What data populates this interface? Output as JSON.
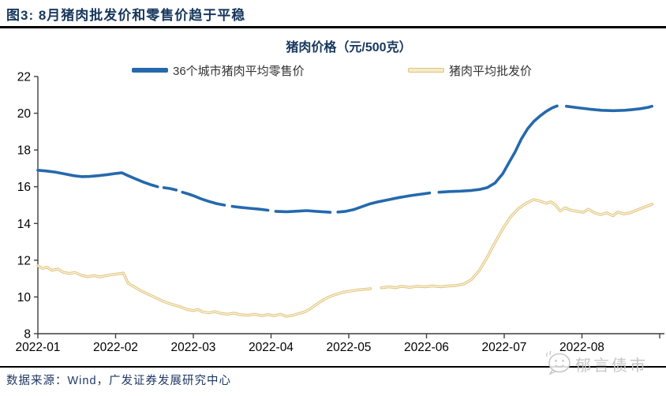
{
  "header": {
    "title": "图3:  8月猪肉批发价和零售价趋于平稳"
  },
  "chart": {
    "title": "猪肉价格（元/500克）"
  },
  "legend": [
    {
      "label": "36个城市猪肉平均零售价",
      "fill": "#2569AC",
      "border": "#2569AC"
    },
    {
      "label": "猪肉平均批发价",
      "fill": "#F5EBC9",
      "border": "#DFC47E"
    }
  ],
  "source": {
    "text": "数据来源：Wind，广发证券发展研究中心"
  },
  "watermark": {
    "text": "郁言债市"
  },
  "chart_data": {
    "type": "line",
    "title": "猪肉价格（元/500克）",
    "xlabel": "",
    "ylabel": "",
    "x_unit": "months since 2022-01-01",
    "xlim": [
      0,
      8.08
    ],
    "ylim": [
      8,
      22
    ],
    "grid": false,
    "legend_position": "top",
    "yticks": [
      8,
      10,
      12,
      14,
      16,
      18,
      20,
      22
    ],
    "xticks": [
      {
        "pos": 0,
        "label": "2022-01"
      },
      {
        "pos": 1,
        "label": "2022-02"
      },
      {
        "pos": 2,
        "label": "2022-03"
      },
      {
        "pos": 3,
        "label": "2022-04"
      },
      {
        "pos": 4,
        "label": "2022-05"
      },
      {
        "pos": 5,
        "label": "2022-06"
      },
      {
        "pos": 6,
        "label": "2022-07"
      },
      {
        "pos": 7,
        "label": "2022-08"
      },
      {
        "pos": 8,
        "label": ""
      }
    ],
    "series": [
      {
        "name": "36个城市猪肉平均零售价",
        "data_name": "retail-price-line",
        "color": "#2569AC",
        "width": 3.6,
        "segments": [
          [
            [
              0,
              16.9
            ],
            [
              0.1,
              16.86
            ],
            [
              0.22,
              16.8
            ],
            [
              0.34,
              16.7
            ],
            [
              0.46,
              16.6
            ],
            [
              0.56,
              16.55
            ],
            [
              0.66,
              16.56
            ],
            [
              0.78,
              16.6
            ],
            [
              0.9,
              16.66
            ],
            [
              1.0,
              16.72
            ],
            [
              1.08,
              16.76
            ],
            [
              1.16,
              16.6
            ],
            [
              1.26,
              16.42
            ],
            [
              1.36,
              16.25
            ],
            [
              1.46,
              16.1
            ],
            [
              1.54,
              16.0
            ]
          ],
          [
            [
              1.62,
              15.95
            ],
            [
              1.7,
              15.9
            ],
            [
              1.78,
              15.82
            ]
          ],
          [
            [
              1.86,
              15.7
            ],
            [
              1.94,
              15.6
            ],
            [
              2.02,
              15.48
            ],
            [
              2.1,
              15.34
            ],
            [
              2.2,
              15.2
            ],
            [
              2.3,
              15.08
            ],
            [
              2.4,
              15.0
            ]
          ],
          [
            [
              2.5,
              14.93
            ],
            [
              2.6,
              14.88
            ],
            [
              2.72,
              14.83
            ],
            [
              2.84,
              14.78
            ],
            [
              2.96,
              14.72
            ]
          ],
          [
            [
              3.06,
              14.66
            ],
            [
              3.2,
              14.64
            ],
            [
              3.34,
              14.67
            ],
            [
              3.46,
              14.7
            ],
            [
              3.58,
              14.66
            ],
            [
              3.68,
              14.63
            ],
            [
              3.76,
              14.61
            ]
          ],
          [
            [
              3.86,
              14.62
            ],
            [
              3.96,
              14.66
            ],
            [
              4.06,
              14.75
            ],
            [
              4.16,
              14.9
            ],
            [
              4.26,
              15.05
            ],
            [
              4.38,
              15.18
            ],
            [
              4.52,
              15.3
            ],
            [
              4.66,
              15.42
            ],
            [
              4.8,
              15.52
            ],
            [
              4.94,
              15.6
            ],
            [
              5.04,
              15.66
            ]
          ],
          [
            [
              5.16,
              15.7
            ],
            [
              5.3,
              15.74
            ],
            [
              5.44,
              15.76
            ],
            [
              5.58,
              15.8
            ],
            [
              5.68,
              15.85
            ],
            [
              5.78,
              15.95
            ],
            [
              5.88,
              16.2
            ],
            [
              5.98,
              16.7
            ],
            [
              6.06,
              17.3
            ],
            [
              6.14,
              17.9
            ],
            [
              6.22,
              18.6
            ],
            [
              6.3,
              19.15
            ],
            [
              6.38,
              19.55
            ],
            [
              6.46,
              19.85
            ],
            [
              6.54,
              20.1
            ],
            [
              6.62,
              20.3
            ],
            [
              6.68,
              20.4
            ]
          ],
          [
            [
              6.8,
              20.38
            ],
            [
              6.95,
              20.3
            ],
            [
              7.1,
              20.22
            ],
            [
              7.25,
              20.16
            ],
            [
              7.4,
              20.14
            ],
            [
              7.55,
              20.16
            ],
            [
              7.65,
              20.2
            ],
            [
              7.75,
              20.25
            ],
            [
              7.85,
              20.32
            ],
            [
              7.9,
              20.38
            ]
          ]
        ]
      },
      {
        "name": "猪肉平均批发价",
        "data_name": "wholesale-price-line",
        "color": "#DFC47E",
        "inner_color": "#FAF3DC",
        "width": 3.4,
        "inner_width": 1.4,
        "segments": [
          [
            [
              0,
              11.7
            ],
            [
              0.06,
              11.55
            ],
            [
              0.12,
              11.62
            ],
            [
              0.18,
              11.45
            ],
            [
              0.26,
              11.52
            ],
            [
              0.32,
              11.35
            ],
            [
              0.4,
              11.28
            ],
            [
              0.48,
              11.33
            ],
            [
              0.56,
              11.18
            ],
            [
              0.64,
              11.1
            ],
            [
              0.72,
              11.16
            ],
            [
              0.8,
              11.1
            ],
            [
              0.88,
              11.16
            ],
            [
              0.96,
              11.22
            ],
            [
              1.04,
              11.26
            ],
            [
              1.1,
              11.3
            ],
            [
              1.16,
              10.75
            ],
            [
              1.24,
              10.55
            ],
            [
              1.32,
              10.35
            ],
            [
              1.42,
              10.15
            ],
            [
              1.52,
              9.95
            ],
            [
              1.62,
              9.75
            ],
            [
              1.72,
              9.6
            ],
            [
              1.82,
              9.48
            ],
            [
              1.92,
              9.32
            ],
            [
              2.0,
              9.26
            ],
            [
              2.06,
              9.32
            ],
            [
              2.12,
              9.18
            ],
            [
              2.2,
              9.14
            ],
            [
              2.28,
              9.2
            ],
            [
              2.36,
              9.1
            ],
            [
              2.44,
              9.06
            ],
            [
              2.52,
              9.12
            ],
            [
              2.6,
              9.04
            ],
            [
              2.7,
              9.0
            ],
            [
              2.78,
              9.06
            ],
            [
              2.88,
              8.98
            ],
            [
              2.96,
              9.04
            ],
            [
              3.04,
              8.98
            ],
            [
              3.12,
              9.06
            ],
            [
              3.2,
              8.94
            ],
            [
              3.28,
              9.0
            ],
            [
              3.36,
              9.1
            ],
            [
              3.44,
              9.2
            ],
            [
              3.52,
              9.4
            ],
            [
              3.62,
              9.7
            ],
            [
              3.72,
              9.95
            ],
            [
              3.82,
              10.12
            ],
            [
              3.92,
              10.25
            ],
            [
              4.02,
              10.32
            ],
            [
              4.12,
              10.38
            ],
            [
              4.22,
              10.42
            ],
            [
              4.28,
              10.45
            ]
          ],
          [
            [
              4.42,
              10.5
            ],
            [
              4.52,
              10.55
            ],
            [
              4.6,
              10.5
            ],
            [
              4.68,
              10.58
            ],
            [
              4.78,
              10.52
            ],
            [
              4.88,
              10.58
            ],
            [
              4.98,
              10.55
            ],
            [
              5.08,
              10.6
            ],
            [
              5.18,
              10.55
            ],
            [
              5.28,
              10.6
            ],
            [
              5.38,
              10.62
            ],
            [
              5.48,
              10.7
            ],
            [
              5.58,
              10.95
            ],
            [
              5.68,
              11.45
            ],
            [
              5.78,
              12.15
            ],
            [
              5.88,
              12.95
            ],
            [
              5.98,
              13.7
            ],
            [
              6.08,
              14.35
            ],
            [
              6.18,
              14.8
            ],
            [
              6.28,
              15.1
            ],
            [
              6.38,
              15.3
            ],
            [
              6.46,
              15.22
            ],
            [
              6.54,
              15.1
            ],
            [
              6.6,
              15.18
            ],
            [
              6.66,
              15.0
            ],
            [
              6.72,
              14.68
            ],
            [
              6.78,
              14.85
            ],
            [
              6.86,
              14.72
            ],
            [
              6.94,
              14.66
            ],
            [
              7.02,
              14.6
            ],
            [
              7.08,
              14.78
            ],
            [
              7.16,
              14.58
            ],
            [
              7.24,
              14.48
            ],
            [
              7.32,
              14.58
            ],
            [
              7.4,
              14.42
            ],
            [
              7.46,
              14.62
            ],
            [
              7.54,
              14.52
            ],
            [
              7.62,
              14.58
            ],
            [
              7.7,
              14.72
            ],
            [
              7.78,
              14.85
            ],
            [
              7.86,
              14.98
            ],
            [
              7.9,
              15.05
            ]
          ]
        ]
      }
    ]
  }
}
